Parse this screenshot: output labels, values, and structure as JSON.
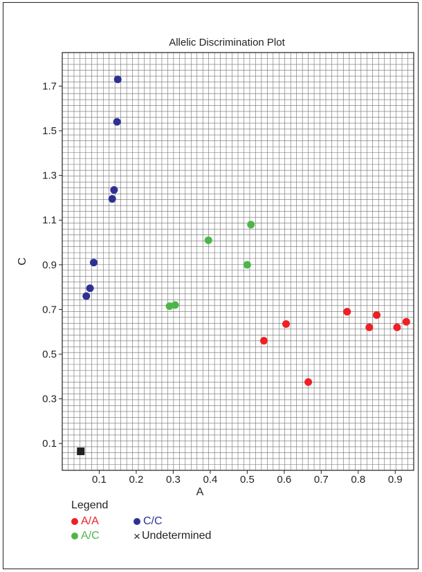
{
  "chart_data": {
    "type": "scatter",
    "title": "Allelic Discrimination Plot",
    "xlabel": "A",
    "ylabel": "C",
    "xlim": [
      0.0,
      0.95
    ],
    "ylim": [
      -0.02,
      1.85
    ],
    "x_ticks": [
      "0.1",
      "0.2",
      "0.3",
      "0.4",
      "0.5",
      "0.6",
      "0.7",
      "0.8",
      "0.9"
    ],
    "y_ticks": [
      "0.1",
      "0.3",
      "0.5",
      "0.7",
      "0.9",
      "1.1",
      "1.3",
      "1.5",
      "1.7"
    ],
    "grid": true,
    "series": [
      {
        "name": "A/A",
        "color": "#ee2024",
        "marker": "circle",
        "points": [
          [
            0.545,
            0.56
          ],
          [
            0.605,
            0.635
          ],
          [
            0.665,
            0.375
          ],
          [
            0.77,
            0.69
          ],
          [
            0.83,
            0.62
          ],
          [
            0.85,
            0.675
          ],
          [
            0.905,
            0.62
          ],
          [
            0.93,
            0.645
          ]
        ]
      },
      {
        "name": "A/C",
        "color": "#4cb748",
        "marker": "circle",
        "points": [
          [
            0.29,
            0.715
          ],
          [
            0.305,
            0.72
          ],
          [
            0.395,
            1.01
          ],
          [
            0.5,
            0.9
          ],
          [
            0.51,
            1.08
          ]
        ]
      },
      {
        "name": "C/C",
        "color": "#2e3192",
        "marker": "circle",
        "points": [
          [
            0.065,
            0.76
          ],
          [
            0.075,
            0.795
          ],
          [
            0.085,
            0.91
          ],
          [
            0.135,
            1.195
          ],
          [
            0.14,
            1.235
          ],
          [
            0.148,
            1.54
          ],
          [
            0.15,
            1.73
          ]
        ]
      },
      {
        "name": "Undetermined",
        "color": "#231f20",
        "marker": "square",
        "points": [
          [
            0.05,
            0.065
          ]
        ]
      }
    ]
  },
  "legend": {
    "title": "Legend",
    "items": [
      {
        "label": "A/A",
        "color": "#ee2024",
        "symbol": "dot"
      },
      {
        "label": "C/C",
        "color": "#2e3192",
        "symbol": "dot"
      },
      {
        "label": "A/C",
        "color": "#4cb748",
        "symbol": "dot"
      },
      {
        "label": "Undetermined",
        "color": "#231f20",
        "symbol": "x",
        "glyph": "×"
      }
    ]
  }
}
